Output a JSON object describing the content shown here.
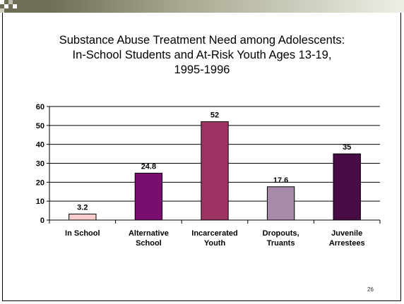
{
  "slide": {
    "title_lines": [
      "Substance Abuse Treatment Need among Adolescents:",
      "In-School Students and At-Risk Youth Ages 13-19,",
      "1995-1996"
    ],
    "page_number": "26"
  },
  "chart_data": {
    "type": "bar",
    "title": "",
    "xlabel": "",
    "ylabel": "",
    "categories": [
      "In School",
      "Alternative School",
      "Incarcerated Youth",
      "Dropouts, Truants",
      "Juvenile Arrestees"
    ],
    "category_lines": [
      [
        "In School"
      ],
      [
        "Alternative",
        "School"
      ],
      [
        "Incarcerated",
        "Youth"
      ],
      [
        "Dropouts,",
        "Truants"
      ],
      [
        "Juvenile",
        "Arrestees"
      ]
    ],
    "values": [
      3.2,
      24.8,
      52,
      17.6,
      35
    ],
    "data_labels": [
      "3.2",
      "24.8",
      "52",
      "17.6",
      "35"
    ],
    "bar_colors": [
      "#f9cccc",
      "#7a0e6e",
      "#9c3363",
      "#a68aa8",
      "#480c44"
    ],
    "ylim": [
      0,
      60
    ],
    "yticks": [
      0,
      10,
      20,
      30,
      40,
      50,
      60
    ],
    "grid": true,
    "legend": "none"
  }
}
